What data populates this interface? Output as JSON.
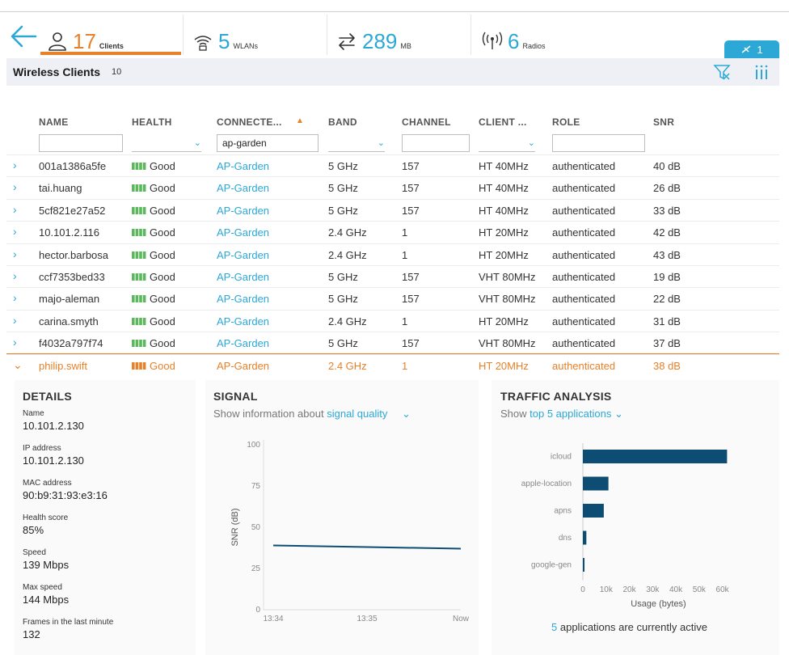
{
  "topbar": {
    "clients": {
      "value": "17",
      "unit": "Clients"
    },
    "wlans": {
      "value": "5",
      "unit": "WLANs"
    },
    "usage": {
      "value": "289",
      "unit": "MB"
    },
    "radios": {
      "value": "6",
      "unit": "Radios"
    },
    "alert_count": "1"
  },
  "colors": {
    "accent": "#2ba8d6",
    "selected": "#e7812a",
    "health_good": "#5cb85c",
    "bar": "#0e4d73"
  },
  "clients_panel": {
    "title": "Wireless Clients",
    "count": "10"
  },
  "table": {
    "headers": {
      "name": "NAME",
      "health": "HEALTH",
      "connected": "CONNECTE...",
      "band": "BAND",
      "channel": "CHANNEL",
      "client_type": "CLIENT ...",
      "role": "ROLE",
      "snr": "SNR"
    },
    "filters": {
      "name": "",
      "connected": "ap-garden",
      "channel": "",
      "role": ""
    },
    "rows": [
      {
        "name": "001a1386a5fe",
        "health": "Good",
        "ap": "AP-Garden",
        "band": "5 GHz",
        "channel": "157",
        "client_type": "HT 40MHz",
        "role": "authenticated",
        "snr": "40 dB"
      },
      {
        "name": "tai.huang",
        "health": "Good",
        "ap": "AP-Garden",
        "band": "5 GHz",
        "channel": "157",
        "client_type": "HT 40MHz",
        "role": "authenticated",
        "snr": "26 dB"
      },
      {
        "name": "5cf821e27a52",
        "health": "Good",
        "ap": "AP-Garden",
        "band": "5 GHz",
        "channel": "157",
        "client_type": "HT 40MHz",
        "role": "authenticated",
        "snr": "33 dB"
      },
      {
        "name": "10.101.2.116",
        "health": "Good",
        "ap": "AP-Garden",
        "band": "2.4 GHz",
        "channel": "1",
        "client_type": "HT 20MHz",
        "role": "authenticated",
        "snr": "42 dB"
      },
      {
        "name": "hector.barbosa",
        "health": "Good",
        "ap": "AP-Garden",
        "band": "2.4 GHz",
        "channel": "1",
        "client_type": "HT 20MHz",
        "role": "authenticated",
        "snr": "43 dB"
      },
      {
        "name": "ccf7353bed33",
        "health": "Good",
        "ap": "AP-Garden",
        "band": "5 GHz",
        "channel": "157",
        "client_type": "VHT 80MHz",
        "role": "authenticated",
        "snr": "19 dB"
      },
      {
        "name": "majo-aleman",
        "health": "Good",
        "ap": "AP-Garden",
        "band": "5 GHz",
        "channel": "157",
        "client_type": "VHT 80MHz",
        "role": "authenticated",
        "snr": "22 dB"
      },
      {
        "name": "carina.smyth",
        "health": "Good",
        "ap": "AP-Garden",
        "band": "2.4 GHz",
        "channel": "1",
        "client_type": "HT 20MHz",
        "role": "authenticated",
        "snr": "31 dB"
      },
      {
        "name": "f4032a797f74",
        "health": "Good",
        "ap": "AP-Garden",
        "band": "5 GHz",
        "channel": "157",
        "client_type": "VHT 80MHz",
        "role": "authenticated",
        "snr": "37 dB"
      },
      {
        "name": "philip.swift",
        "health": "Good",
        "ap": "AP-Garden",
        "band": "2.4 GHz",
        "channel": "1",
        "client_type": "HT 20MHz",
        "role": "authenticated",
        "snr": "38 dB"
      }
    ]
  },
  "details": {
    "title": "DETAILS",
    "fields": [
      {
        "label": "Name",
        "value": "10.101.2.130"
      },
      {
        "label": "IP address",
        "value": "10.101.2.130"
      },
      {
        "label": "MAC address",
        "value": "90:b9:31:93:e3:16"
      },
      {
        "label": "Health score",
        "value": "85%"
      },
      {
        "label": "Speed",
        "value": "139 Mbps"
      },
      {
        "label": "Max speed",
        "value": "144 Mbps"
      },
      {
        "label": "Frames in the last minute",
        "value": "132"
      }
    ]
  },
  "signal": {
    "title": "SIGNAL",
    "show_prefix": "Show information about",
    "show_option": "signal quality"
  },
  "traffic": {
    "title": "TRAFFIC ANALYSIS",
    "show_prefix": "Show",
    "show_option": "top 5 applications",
    "active_count": "5",
    "active_text": "applications are currently active"
  },
  "chart_data": [
    {
      "type": "line",
      "ylabel": "SNR (dB)",
      "ylim": [
        0,
        100
      ],
      "yticks": [
        "0",
        "25",
        "50",
        "75",
        "100"
      ],
      "xticks": [
        "13:34",
        "13:35",
        "Now"
      ],
      "series": [
        {
          "x": [
            "13:34",
            "13:35",
            "Now"
          ],
          "values": [
            39,
            38,
            37
          ]
        }
      ]
    },
    {
      "type": "bar",
      "orientation": "horizontal",
      "categories": [
        "icloud",
        "apple-location",
        "apns",
        "dns",
        "google-gen"
      ],
      "values": [
        62000,
        11000,
        9000,
        1500,
        700
      ],
      "xlabel": "Usage (bytes)",
      "xlim": [
        0,
        65000
      ],
      "xticks": [
        "0",
        "10k",
        "20k",
        "30k",
        "40k",
        "50k",
        "60k"
      ]
    }
  ]
}
